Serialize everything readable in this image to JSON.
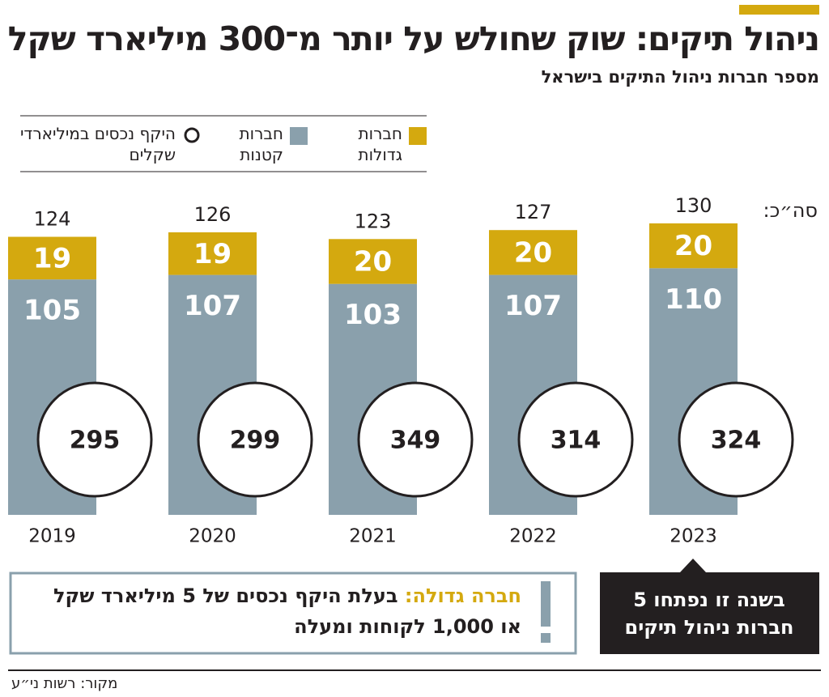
{
  "chart_data": {
    "type": "stacked-bar",
    "title": "ניהול תיקים: שוק שחולש על יותר מ־300 מיליארד שקל",
    "subtitle": "מספר חברות ניהול התיקים בישראל",
    "categories": [
      "2019",
      "2020",
      "2021",
      "2022",
      "2023"
    ],
    "series": [
      {
        "name": "חברות גדולות",
        "color": "#d4a90f",
        "values": [
          19,
          19,
          20,
          20,
          20
        ]
      },
      {
        "name": "חברות קטנות",
        "color": "#8aa0ac",
        "values": [
          105,
          107,
          103,
          107,
          110
        ]
      },
      {
        "name": "היקף נכסים במיליארדי שקלים",
        "marker": "circle",
        "values": [
          295,
          299,
          349,
          314,
          324
        ]
      }
    ],
    "totals": {
      "label": "סה״כ:",
      "values": [
        124,
        126,
        123,
        127,
        130
      ]
    },
    "annotations": [
      {
        "term": "חברה גדולה:",
        "text": "בעלת היקף נכסים של 5 מיליארד שקל או 1,000 לקוחות ומעלה"
      },
      {
        "text": "בשנה זו נפתחו 5 חברות ניהול תיקים",
        "category": "2023"
      }
    ],
    "source": "מקור: רשות ני״ע"
  }
}
